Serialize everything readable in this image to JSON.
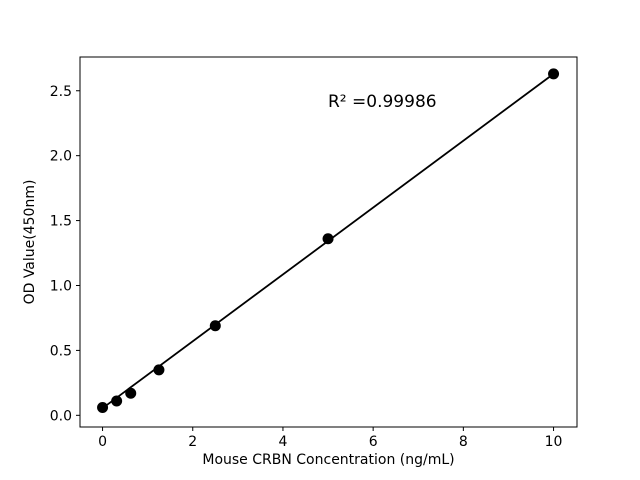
{
  "chart_data": {
    "type": "scatter",
    "title": "",
    "xlabel": "Mouse CRBN Concentration (ng/mL)",
    "ylabel": "OD Value(450nm)",
    "x": [
      0,
      0.3125,
      0.625,
      1.25,
      2.5,
      5,
      10
    ],
    "y": [
      0.06,
      0.11,
      0.17,
      0.35,
      0.69,
      1.36,
      2.63
    ],
    "trendline": {
      "x1": 0,
      "y1": 0.055,
      "x2": 10,
      "y2": 2.63
    },
    "annotation": "R² =0.99986",
    "xtick_values": [
      0,
      2,
      4,
      6,
      8,
      10
    ],
    "xtick_labels": [
      "0",
      "2",
      "4",
      "6",
      "8",
      "10"
    ],
    "ytick_values": [
      0,
      0.5,
      1,
      1.5,
      2,
      2.5
    ],
    "ytick_labels": [
      "0.0",
      "0.5",
      "1.0",
      "1.5",
      "2.0",
      "2.5"
    ],
    "xlim": [
      -0.5,
      10.52
    ],
    "ylim": [
      -0.09,
      2.76
    ],
    "grid": false,
    "legend": null,
    "marker_size_px": 11,
    "colors": {
      "marker": "#000000",
      "line": "#000000",
      "axis": "#000000",
      "text": "#000000",
      "background": "#ffffff"
    }
  }
}
